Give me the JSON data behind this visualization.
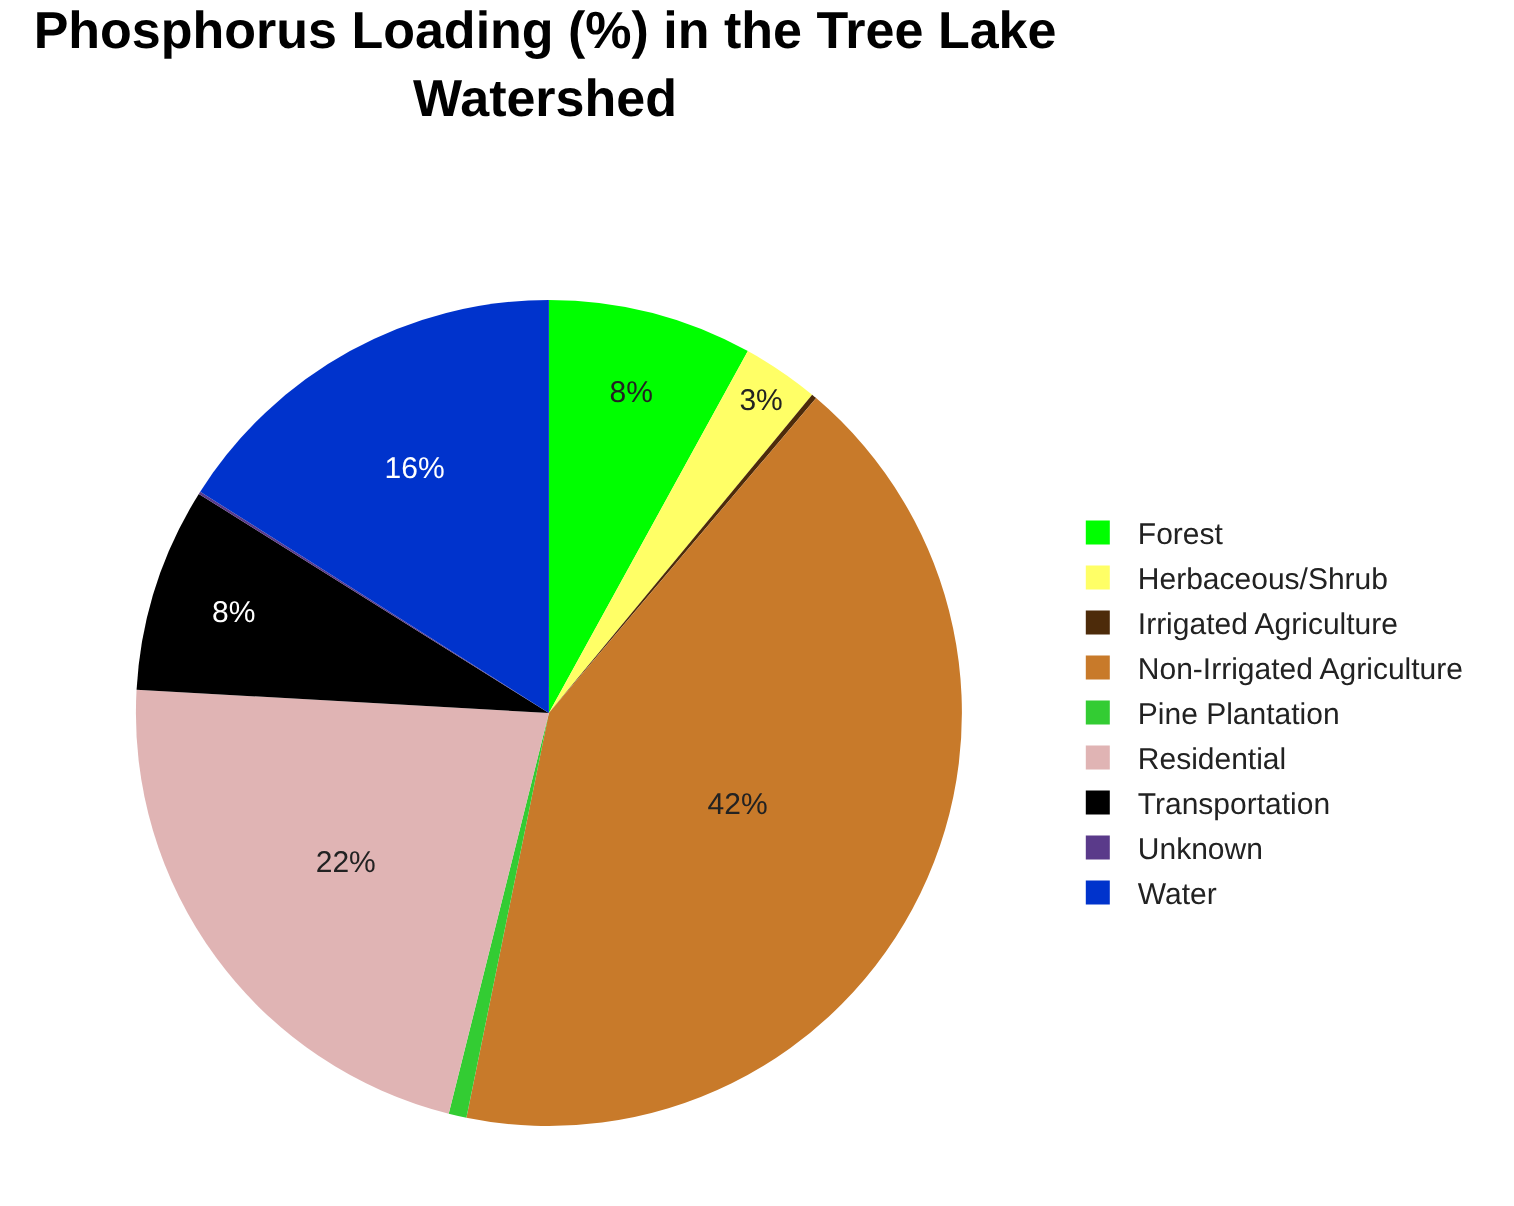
{
  "chart_data": {
    "type": "pie",
    "title": "Phosphorus Loading (%) in the Tree Lake Watershed",
    "categories": [
      "Forest",
      "Herbaceous/Shrub",
      "Irrigated Agriculture",
      "Non-Irrigated Agriculture",
      "Pine Plantation",
      "Residential",
      "Transportation",
      "Unknown",
      "Water"
    ],
    "values": [
      8,
      3,
      0.2,
      42,
      0.7,
      22,
      8,
      0.1,
      16
    ],
    "colors": [
      "#00ff00",
      "#ffff66",
      "#4d2b0a",
      "#c87a2a",
      "#33cc33",
      "#e0b4b4",
      "#000000",
      "#5a3a8a",
      "#0033cc"
    ],
    "value_labels": [
      "8%",
      "3%",
      null,
      "42%",
      null,
      "22%",
      "8%",
      null,
      "16%"
    ],
    "legend": "right"
  }
}
